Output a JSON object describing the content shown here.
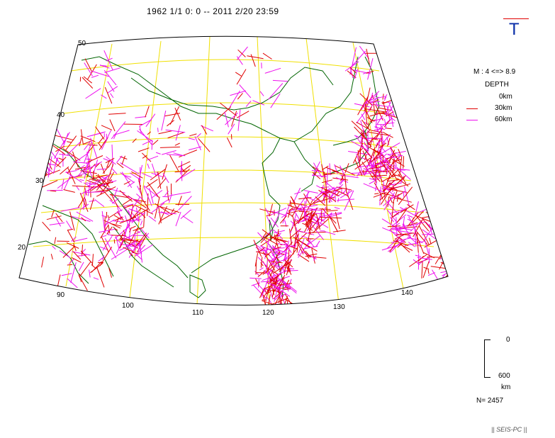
{
  "header": {
    "period": "1962 1/1 0: 0 -- 2011 2/20 23:59"
  },
  "badge": {
    "letter": "T",
    "color": "#0a2ea8",
    "line_color": "#e00000"
  },
  "legend": {
    "magnitude": "M : 4 <=> 8.9",
    "depth_title": "DEPTH",
    "depths": [
      "0km",
      "30km",
      "60km"
    ],
    "colors": {
      "30km": "#e00000",
      "60km": "#ee10ee"
    }
  },
  "scale": {
    "top": "0",
    "bottom": "600",
    "unit": "km"
  },
  "count": "N= 2457",
  "credit": "|| SEIS-PC ||",
  "map": {
    "lat_labels": [
      "50",
      "40",
      "30",
      "20"
    ],
    "lon_labels": [
      "90",
      "100",
      "110",
      "120",
      "130",
      "140"
    ],
    "colors": {
      "grid": "#f0e000",
      "coast": "#006400",
      "frame": "#000000"
    }
  }
}
